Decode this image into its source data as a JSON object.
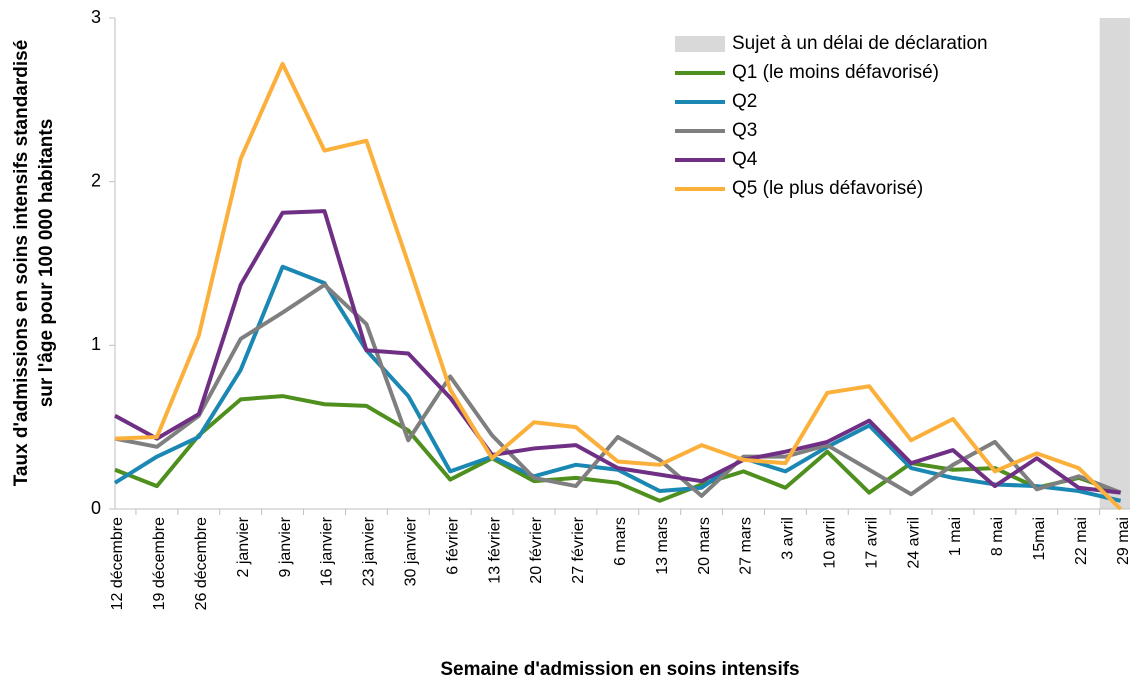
{
  "chart_data": {
    "type": "line",
    "ylabel": [
      "Taux d'admissions en soins intensifs standardisé",
      "sur l'âge pour  100 000 habitants"
    ],
    "xlabel": "Semaine d'admission en soins intensifs",
    "categories": [
      "12 décembre",
      "19 décembre",
      "26 décembre",
      "2 janvier",
      "9 janvier",
      "16 janvier",
      "23 janvier",
      "30 janvier",
      "6 février",
      "13 février",
      "20 février",
      "27 février",
      "6 mars",
      "13 mars",
      "20 mars",
      "27 mars",
      "3 avril",
      "10 avril",
      "17 avril",
      "24 avril",
      "1 mai",
      "8 mai",
      "15mai",
      "22 mai",
      "29 mai"
    ],
    "ylim": [
      0,
      3
    ],
    "yticks": [
      0,
      1,
      2,
      3
    ],
    "grid": false,
    "legend": "top-right",
    "shaded_region": {
      "label": "Sujet à un délai de déclaration",
      "color": "#d9d9d9"
    },
    "series": [
      {
        "name": "Q1 (le moins défavorisé)",
        "color": "#4e8f1e",
        "values": [
          0.24,
          0.14,
          0.45,
          0.67,
          0.69,
          0.64,
          0.63,
          0.48,
          0.18,
          0.31,
          0.17,
          0.19,
          0.16,
          0.05,
          0.15,
          0.23,
          0.13,
          0.35,
          0.1,
          0.28,
          0.24,
          0.25,
          0.13,
          0.19,
          0.1
        ]
      },
      {
        "name": "Q2",
        "color": "#1b87b3",
        "values": [
          0.16,
          0.32,
          0.44,
          0.85,
          1.48,
          1.38,
          0.97,
          0.69,
          0.23,
          0.32,
          0.2,
          0.27,
          0.24,
          0.11,
          0.13,
          0.31,
          0.23,
          0.38,
          0.51,
          0.25,
          0.19,
          0.15,
          0.14,
          0.11,
          0.05
        ]
      },
      {
        "name": "Q3",
        "color": "#7f7f7f",
        "values": [
          0.43,
          0.38,
          0.57,
          1.04,
          1.2,
          1.37,
          1.13,
          0.42,
          0.81,
          0.45,
          0.19,
          0.14,
          0.44,
          0.3,
          0.08,
          0.32,
          0.32,
          0.39,
          0.24,
          0.09,
          0.27,
          0.41,
          0.12,
          0.2,
          0.1
        ]
      },
      {
        "name": "Q4",
        "color": "#6f2f84",
        "values": [
          0.57,
          0.43,
          0.58,
          1.37,
          1.81,
          1.82,
          0.97,
          0.95,
          0.68,
          0.33,
          0.37,
          0.39,
          0.25,
          0.21,
          0.17,
          0.3,
          0.35,
          0.41,
          0.54,
          0.28,
          0.36,
          0.14,
          0.31,
          0.13,
          0.1
        ]
      },
      {
        "name": "Q5 (le plus défavorisé)",
        "color": "#fbb03b",
        "values": [
          0.43,
          0.44,
          1.06,
          2.14,
          2.72,
          2.19,
          2.25,
          1.5,
          0.73,
          0.31,
          0.53,
          0.5,
          0.29,
          0.27,
          0.39,
          0.3,
          0.28,
          0.71,
          0.75,
          0.42,
          0.55,
          0.23,
          0.34,
          0.25,
          0.0
        ]
      }
    ]
  }
}
